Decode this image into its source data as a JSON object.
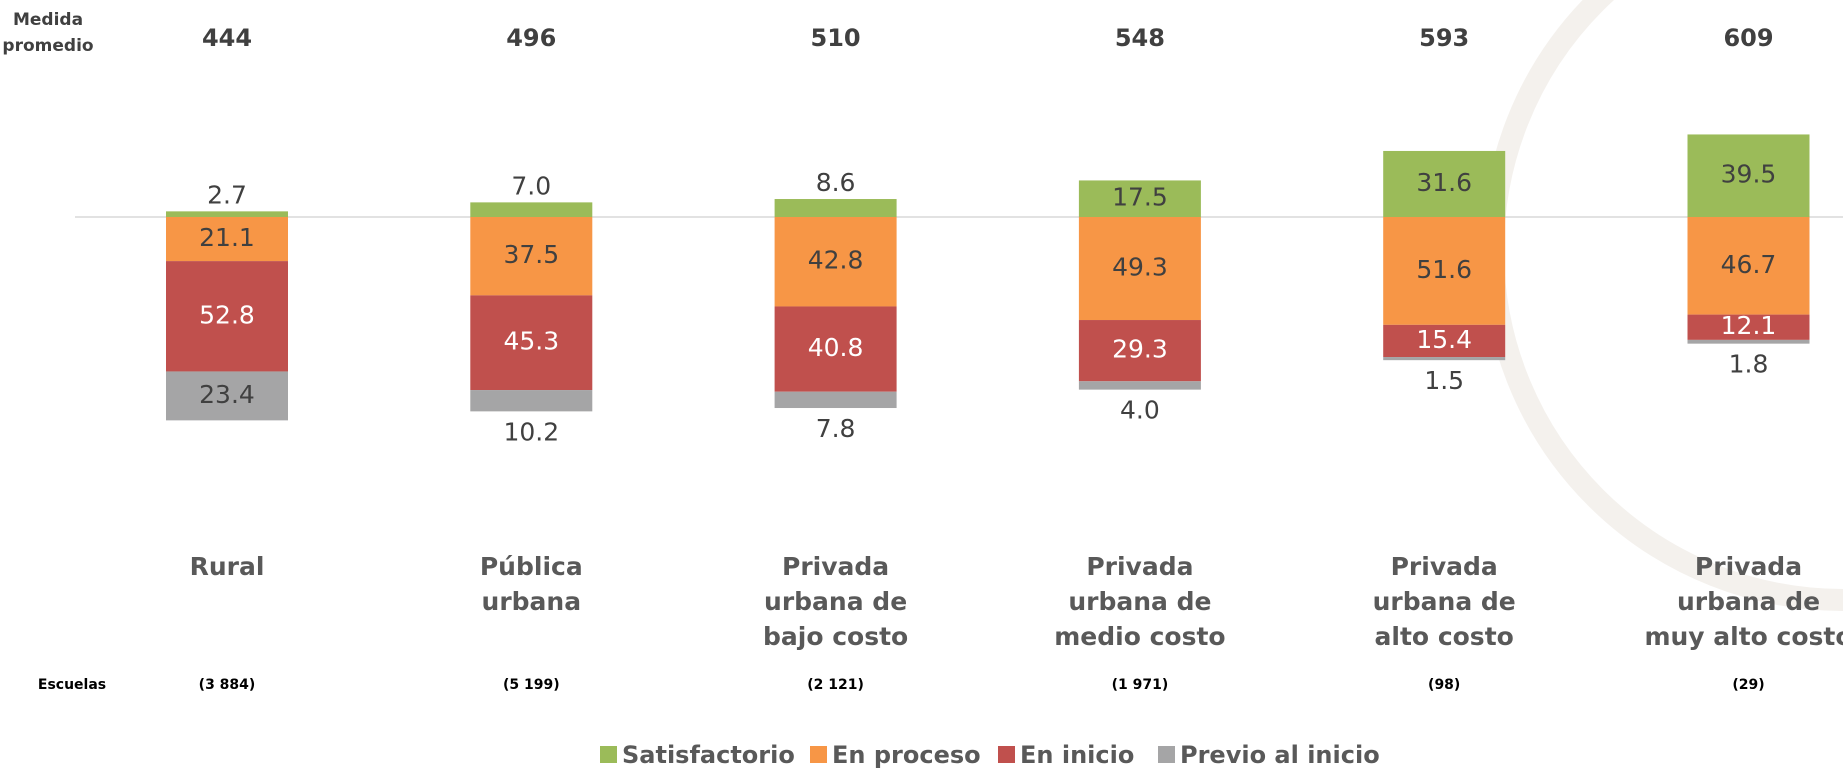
{
  "chart_data": {
    "type": "diverging-bar",
    "categories": [
      [
        "Rural"
      ],
      [
        "Pública",
        "urbana"
      ],
      [
        "Privada",
        "urbana de",
        "bajo costo"
      ],
      [
        "Privada",
        "urbana de",
        "medio costo"
      ],
      [
        "Privada",
        "urbana de",
        "alto costo"
      ],
      [
        "Privada",
        "urbana de",
        "muy alto costo"
      ]
    ],
    "average": {
      "label": [
        "Medida",
        "promedio"
      ],
      "values": [
        444,
        496,
        510,
        548,
        593,
        609
      ]
    },
    "schools": {
      "label": "Escuelas",
      "values": [
        3884,
        5199,
        2121,
        1971,
        98,
        29
      ],
      "value_labels": [
        "(3 884)",
        "(5 199)",
        "(2 121)",
        "(1 971)",
        "(98)",
        "(29)"
      ]
    },
    "series": [
      {
        "name": "Satisfactorio",
        "color": "#9bbb59",
        "values": [
          2.7,
          7.0,
          8.6,
          17.5,
          31.6,
          39.5
        ],
        "value_labels": [
          "2.7",
          "7.0",
          "8.6",
          "17.5",
          "31.6",
          "39.5"
        ]
      },
      {
        "name": "En proceso",
        "color": "#f79646",
        "values": [
          21.1,
          37.5,
          42.8,
          49.3,
          51.6,
          46.7
        ],
        "value_labels": [
          "21.1",
          "37.5",
          "42.8",
          "49.3",
          "51.6",
          "46.7"
        ]
      },
      {
        "name": "En inicio",
        "color": "#c0504d",
        "values": [
          52.8,
          45.3,
          40.8,
          29.3,
          15.4,
          12.1
        ],
        "value_labels": [
          "52.8",
          "45.3",
          "40.8",
          "29.3",
          "15.4",
          "12.1"
        ]
      },
      {
        "name": "Previo al inicio",
        "color": "#a5a5a6",
        "values": [
          23.4,
          10.2,
          7.8,
          4.0,
          1.5,
          1.8
        ],
        "value_labels": [
          "23.4",
          "10.2",
          "7.8",
          "4.0",
          "1.5",
          "1.8"
        ]
      }
    ],
    "legend": "bottom"
  }
}
